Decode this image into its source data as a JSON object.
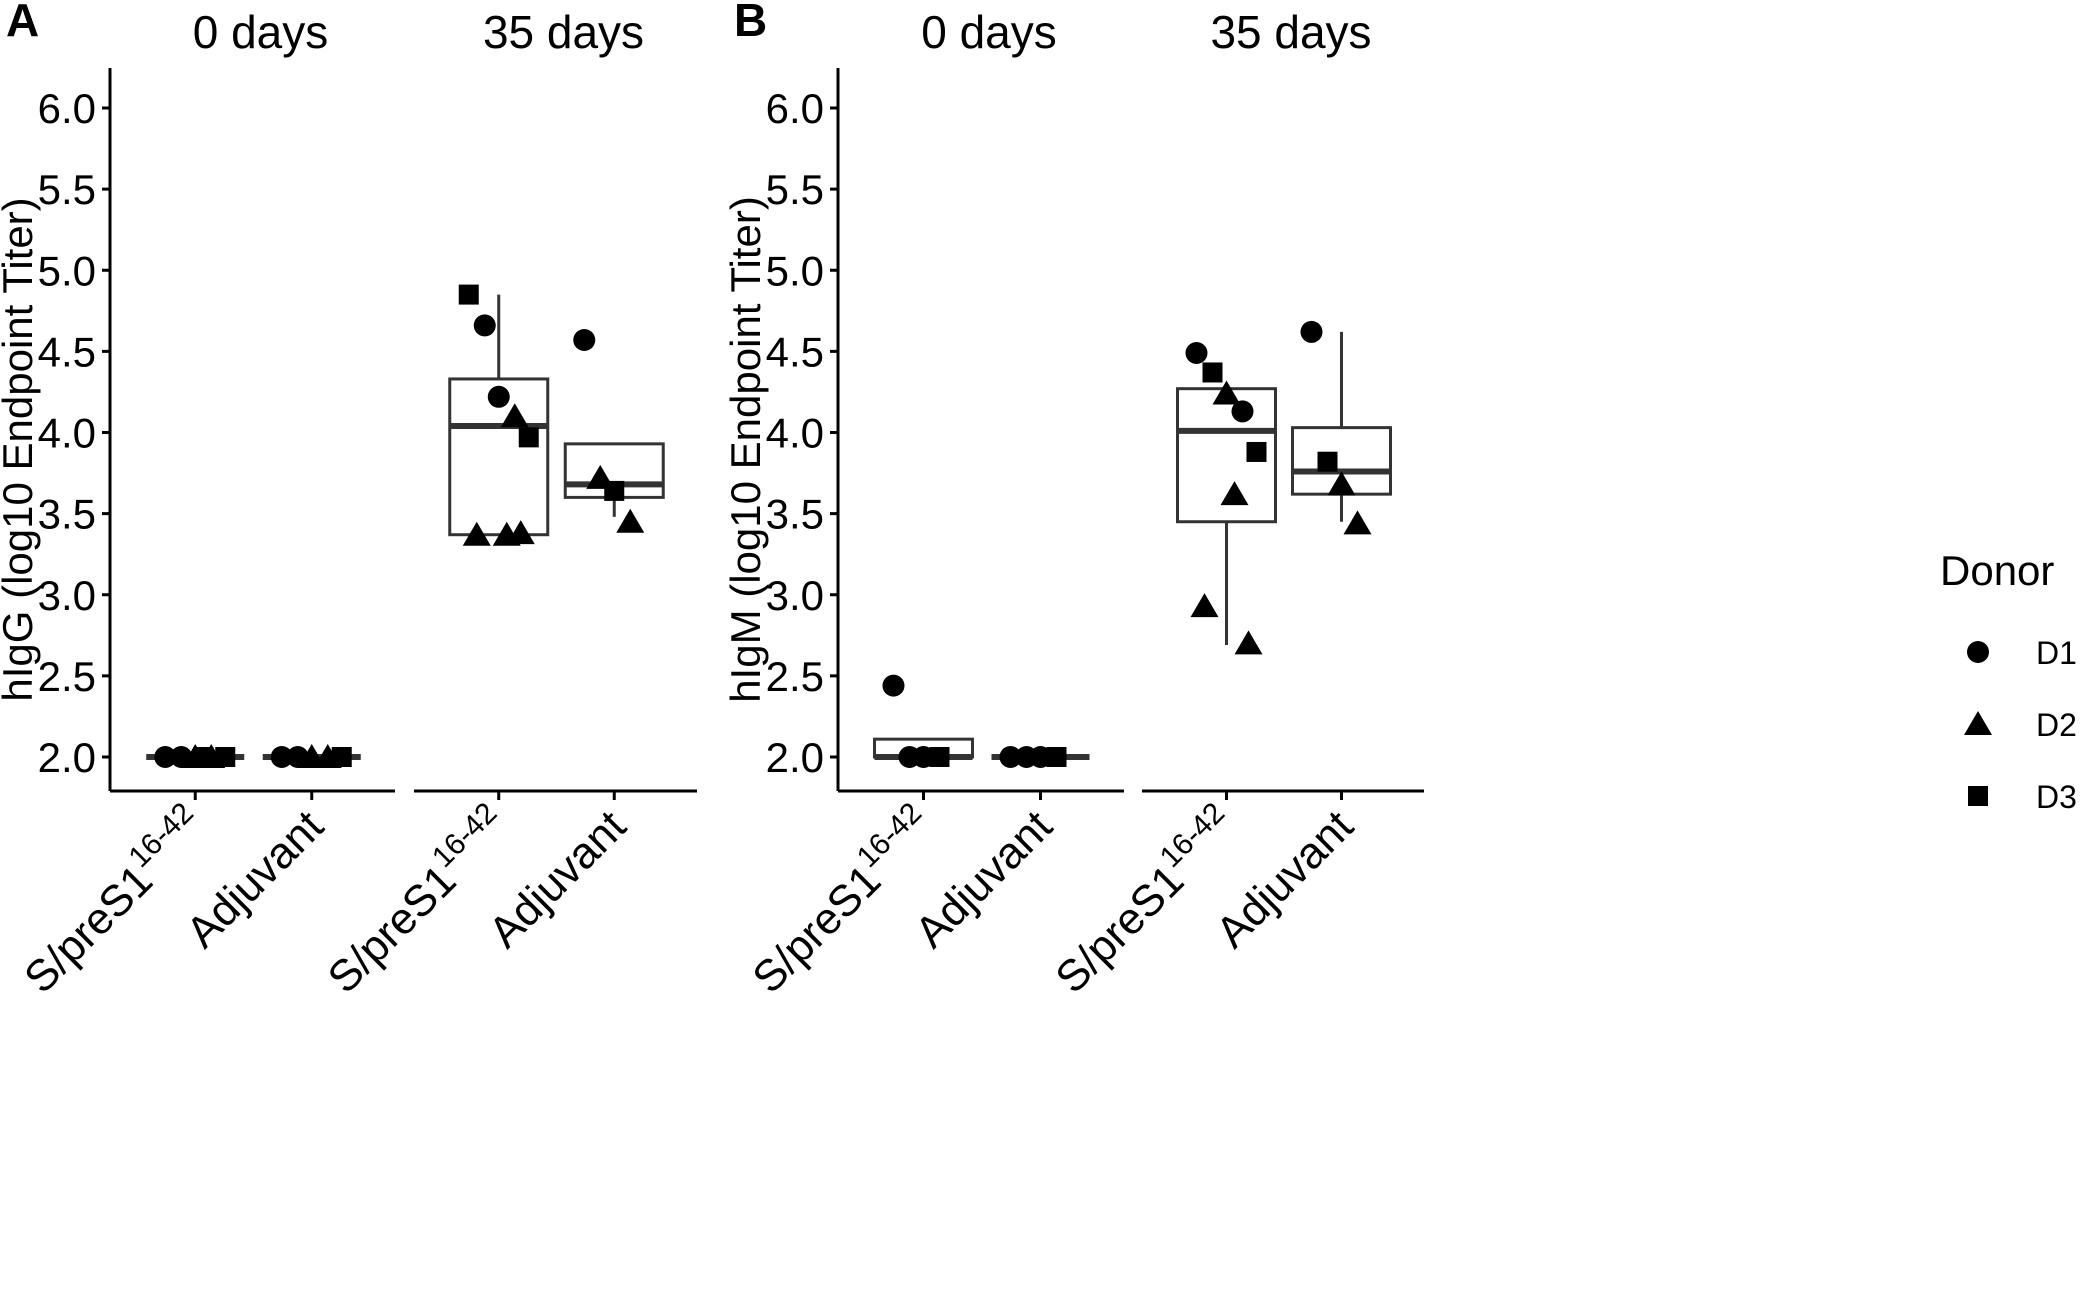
{
  "legend": {
    "title": "Donor",
    "entries": [
      {
        "label": "D1",
        "shape": "circle"
      },
      {
        "label": "D2",
        "shape": "triangle"
      },
      {
        "label": "D3",
        "shape": "square"
      }
    ]
  },
  "colors": {
    "points": "#000000",
    "box": "#333333",
    "axis": "#000000",
    "background": "#ffffff"
  },
  "chart_data": [
    {
      "type": "box",
      "panel_label": "A",
      "ylabel": "hIgG (log10 Endpoint Titer)",
      "ylim": [
        1.8,
        6.2
      ],
      "yticks": [
        "2.0",
        "2.5",
        "3.0",
        "3.5",
        "4.0",
        "4.5",
        "5.0",
        "5.5",
        "6.0"
      ],
      "facets": [
        {
          "title": "0 days",
          "groups": [
            {
              "label_main": "S/preS1",
              "label_sup": "16-42",
              "box": {
                "q1": 2.0,
                "median": 2.0,
                "q3": 2.0,
                "whisker_low": 2.0,
                "whisker_high": 2.0
              },
              "points": [
                {
                  "donor": "D1",
                  "y": 2.0
                },
                {
                  "donor": "D1",
                  "y": 2.0
                },
                {
                  "donor": "D2",
                  "y": 2.0
                },
                {
                  "donor": "D2",
                  "y": 2.0
                },
                {
                  "donor": "D3",
                  "y": 2.0
                },
                {
                  "donor": "D3",
                  "y": 2.0
                }
              ]
            },
            {
              "label_main": "Adjuvant",
              "label_sup": "",
              "box": {
                "q1": 2.0,
                "median": 2.0,
                "q3": 2.0,
                "whisker_low": 2.0,
                "whisker_high": 2.0
              },
              "points": [
                {
                  "donor": "D1",
                  "y": 2.0
                },
                {
                  "donor": "D1",
                  "y": 2.0
                },
                {
                  "donor": "D2",
                  "y": 2.0
                },
                {
                  "donor": "D2",
                  "y": 2.0
                },
                {
                  "donor": "D3",
                  "y": 2.0
                }
              ]
            }
          ]
        },
        {
          "title": "35 days",
          "groups": [
            {
              "label_main": "S/preS1",
              "label_sup": "16-42",
              "box": {
                "q1": 3.37,
                "median": 4.04,
                "q3": 4.33,
                "whisker_low": 3.37,
                "whisker_high": 4.85
              },
              "points": [
                {
                  "donor": "D3",
                  "y": 4.85
                },
                {
                  "donor": "D1",
                  "y": 4.66
                },
                {
                  "donor": "D1",
                  "y": 4.22
                },
                {
                  "donor": "D2",
                  "y": 4.1
                },
                {
                  "donor": "D3",
                  "y": 3.97
                },
                {
                  "donor": "D2",
                  "y": 3.37
                },
                {
                  "donor": "D2",
                  "y": 3.37
                },
                {
                  "donor": "D2",
                  "y": 3.38
                }
              ]
            },
            {
              "label_main": "Adjuvant",
              "label_sup": "",
              "box": {
                "q1": 3.6,
                "median": 3.68,
                "q3": 3.93,
                "whisker_low": 3.48,
                "whisker_high": 3.93
              },
              "points": [
                {
                  "donor": "D1",
                  "y": 4.57
                },
                {
                  "donor": "D2",
                  "y": 3.72
                },
                {
                  "donor": "D3",
                  "y": 3.64
                },
                {
                  "donor": "D2",
                  "y": 3.45
                }
              ]
            }
          ]
        }
      ]
    },
    {
      "type": "box",
      "panel_label": "B",
      "ylabel": "hIgM (log10 Endpoint Titer)",
      "ylim": [
        1.8,
        6.2
      ],
      "yticks": [
        "2.0",
        "2.5",
        "3.0",
        "3.5",
        "4.0",
        "4.5",
        "5.0",
        "5.5",
        "6.0"
      ],
      "facets": [
        {
          "title": "0 days",
          "groups": [
            {
              "label_main": "S/preS1",
              "label_sup": "16-42",
              "box": {
                "q1": 2.0,
                "median": 2.0,
                "q3": 2.11,
                "whisker_low": 2.0,
                "whisker_high": 2.11
              },
              "points": [
                {
                  "donor": "D1",
                  "y": 2.44
                },
                {
                  "donor": "D1",
                  "y": 2.0
                },
                {
                  "donor": "D1",
                  "y": 2.0
                },
                {
                  "donor": "D3",
                  "y": 2.0
                }
              ]
            },
            {
              "label_main": "Adjuvant",
              "label_sup": "",
              "box": {
                "q1": 2.0,
                "median": 2.0,
                "q3": 2.0,
                "whisker_low": 2.0,
                "whisker_high": 2.0
              },
              "points": [
                {
                  "donor": "D1",
                  "y": 2.0
                },
                {
                  "donor": "D1",
                  "y": 2.0
                },
                {
                  "donor": "D1",
                  "y": 2.0
                },
                {
                  "donor": "D3",
                  "y": 2.0
                }
              ]
            }
          ]
        },
        {
          "title": "35 days",
          "groups": [
            {
              "label_main": "S/preS1",
              "label_sup": "16-42",
              "box": {
                "q1": 3.45,
                "median": 4.01,
                "q3": 4.27,
                "whisker_low": 2.69,
                "whisker_high": 4.27
              },
              "points": [
                {
                  "donor": "D1",
                  "y": 4.49
                },
                {
                  "donor": "D3",
                  "y": 4.37
                },
                {
                  "donor": "D2",
                  "y": 4.24
                },
                {
                  "donor": "D1",
                  "y": 4.13
                },
                {
                  "donor": "D3",
                  "y": 3.88
                },
                {
                  "donor": "D2",
                  "y": 3.62
                },
                {
                  "donor": "D2",
                  "y": 2.93
                },
                {
                  "donor": "D2",
                  "y": 2.7
                }
              ]
            },
            {
              "label_main": "Adjuvant",
              "label_sup": "",
              "box": {
                "q1": 3.62,
                "median": 3.76,
                "q3": 4.03,
                "whisker_low": 3.45,
                "whisker_high": 4.62
              },
              "points": [
                {
                  "donor": "D1",
                  "y": 4.62
                },
                {
                  "donor": "D3",
                  "y": 3.82
                },
                {
                  "donor": "D2",
                  "y": 3.68
                },
                {
                  "donor": "D2",
                  "y": 3.44
                }
              ]
            }
          ]
        }
      ]
    }
  ]
}
